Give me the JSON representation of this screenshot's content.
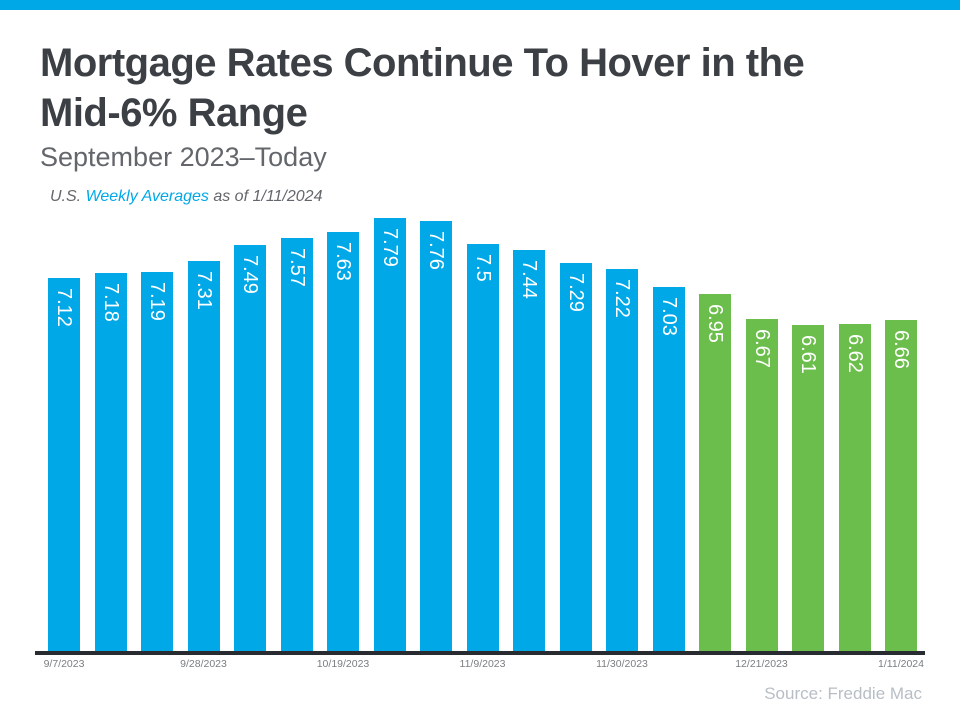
{
  "header": {
    "title_line1": "Mortgage Rates Continue To Hover in the",
    "title_line2": "Mid-6% Range",
    "subtitle": "September 2023–Today",
    "note_prefix": "U.S. ",
    "note_highlight": "Weekly Averages",
    "note_suffix": " as of 1/11/2024"
  },
  "footer": {
    "source": "Source: Freddie Mac"
  },
  "colors": {
    "accent_blue": "#00A8E8",
    "bar_blue": "#00A8E8",
    "bar_green": "#6CBE4C",
    "title_text": "#3C4045",
    "subtitle_text": "#63676B",
    "axis_line": "#282C31",
    "tick_text": "#7A7E82",
    "source_text": "#B7BEC5",
    "value_label_text": "#FFFFFF"
  },
  "chart_data": {
    "type": "bar",
    "title": "Mortgage Rates Continue To Hover in the Mid-6% Range",
    "subtitle": "September 2023–Today",
    "note": "U.S. Weekly Averages as of 1/11/2024",
    "source": "Source: Freddie Mac",
    "unit": "percent",
    "values": [
      7.12,
      7.18,
      7.19,
      7.31,
      7.49,
      7.57,
      7.63,
      7.79,
      7.76,
      7.5,
      7.44,
      7.29,
      7.22,
      7.03,
      6.95,
      6.67,
      6.61,
      6.62,
      6.66
    ],
    "value_labels": [
      "7.12",
      "7.18",
      "7.19",
      "7.31",
      "7.49",
      "7.57",
      "7.63",
      "7.79",
      "7.76",
      "7.5",
      "7.44",
      "7.29",
      "7.22",
      "7.03",
      "6.95",
      "6.67",
      "6.61",
      "6.62",
      "6.66"
    ],
    "bar_colors": [
      "blue",
      "blue",
      "blue",
      "blue",
      "blue",
      "blue",
      "blue",
      "blue",
      "blue",
      "blue",
      "blue",
      "blue",
      "blue",
      "blue",
      "green",
      "green",
      "green",
      "green",
      "green"
    ],
    "ticks": [
      {
        "index": 0,
        "label": "9/7/2023"
      },
      {
        "index": 3,
        "label": "9/28/2023"
      },
      {
        "index": 6,
        "label": "10/19/2023"
      },
      {
        "index": 9,
        "label": "11/9/2023"
      },
      {
        "index": 12,
        "label": "11/30/2023"
      },
      {
        "index": 15,
        "label": "12/21/2023"
      },
      {
        "index": 18,
        "label": "1/11/2024"
      }
    ],
    "ylim": [
      3.0,
      7.8
    ],
    "grid": false,
    "legend": false,
    "value_labels_shown": true,
    "value_label_rotation_deg": 90
  }
}
